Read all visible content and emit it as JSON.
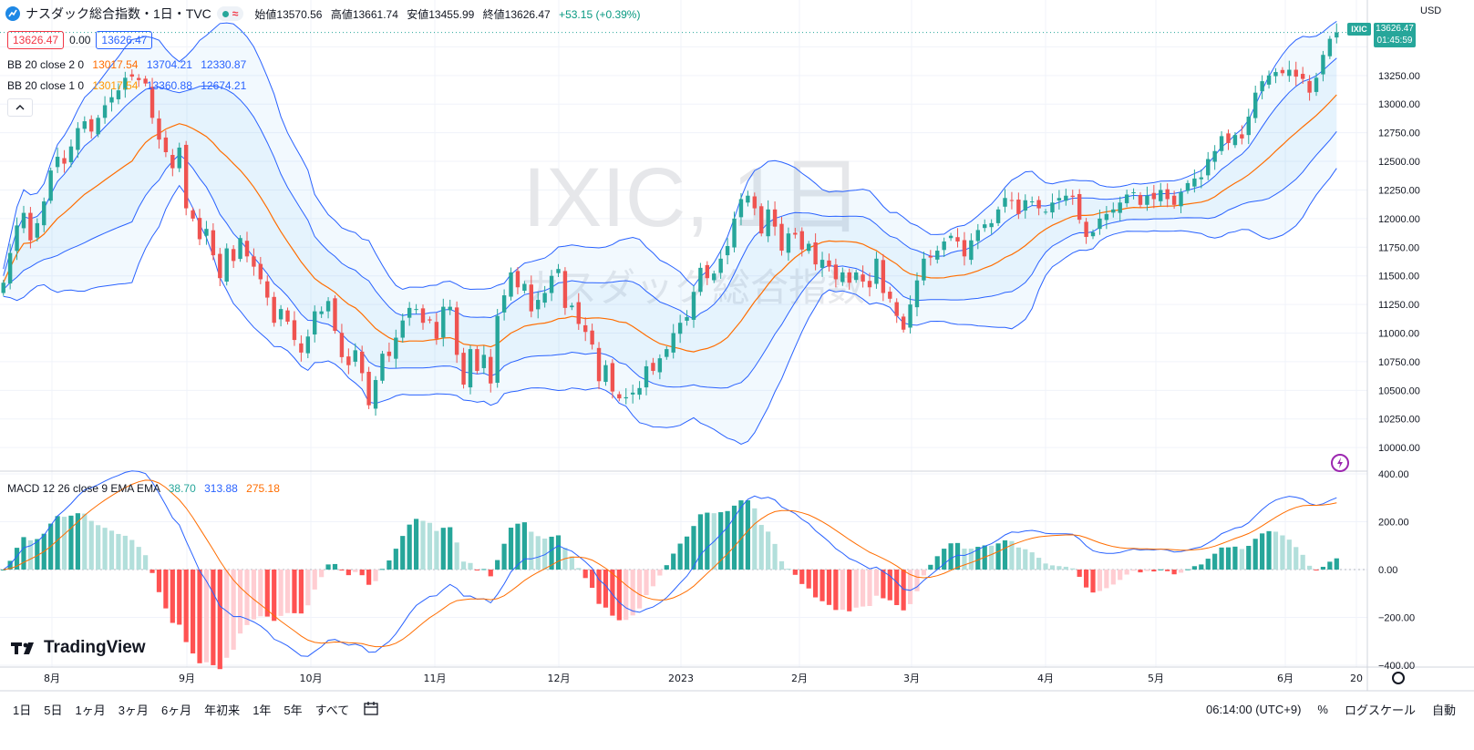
{
  "header": {
    "symbol_title": "ナスダック総合指数・1日・TVC",
    "approx_icon": "≈",
    "ohlc": {
      "open_label": "始値",
      "open": "13570.56",
      "high_label": "高値",
      "high": "13661.74",
      "low_label": "安値",
      "low": "13455.99",
      "close_label": "終値",
      "close": "13626.47",
      "change": "+53.15 (+0.39%)"
    }
  },
  "quote_boxes": {
    "bid": "13626.47",
    "spread": "0.00",
    "ask": "13626.47"
  },
  "indicators": {
    "bb2": {
      "label": "BB 20 close 2 0",
      "basis": "13017.54",
      "upper": "13704.21",
      "lower": "12330.87"
    },
    "bb1": {
      "label": "BB 20 close 1 0",
      "basis": "13017.54",
      "upper": "13360.88",
      "lower": "12674.21"
    },
    "macd": {
      "label": "MACD 12 26 close 9 EMA EMA",
      "hist": "38.70",
      "macd": "313.88",
      "signal": "275.18"
    }
  },
  "watermark": {
    "line1": "IXIC, 1日",
    "line2": "ナスダック総合指数"
  },
  "axis": {
    "currency": "USD",
    "price_ticks": [
      "13250.00",
      "13000.00",
      "12750.00",
      "12500.00",
      "12250.00",
      "12000.00",
      "11750.00",
      "11500.00",
      "11250.00",
      "11000.00",
      "10750.00",
      "10500.00",
      "10250.00",
      "10000.00"
    ],
    "macd_ticks": [
      "400.00",
      "200.00",
      "0.00",
      "−200.00",
      "−400.00"
    ],
    "time_labels": [
      "8月",
      "9月",
      "10月",
      "11月",
      "12月",
      "2023",
      "2月",
      "3月",
      "4月",
      "5月",
      "6月",
      "20"
    ]
  },
  "price_tag": {
    "symbol": "IXIC",
    "price": "13626.47",
    "countdown": "01:45:59"
  },
  "branding": {
    "name": "TradingView"
  },
  "bottom_bar": {
    "ranges": [
      "1日",
      "5日",
      "1ヶ月",
      "3ヶ月",
      "6ヶ月",
      "年初来",
      "1年",
      "5年",
      "すべて"
    ],
    "clock": "06:14:00 (UTC+9)",
    "percent": "%",
    "log_scale": "ログスケール",
    "auto": "自動"
  },
  "colors": {
    "up": "#26a69a",
    "down": "#ef5350",
    "bb_outer": "#2962ff",
    "bb_basis": "#ff6d00",
    "macd": "#2962ff",
    "signal": "#ff6d00"
  },
  "chart_data": {
    "type": "candlestick",
    "price_range": [
      9850,
      13750
    ],
    "macd_range": [
      -400,
      400
    ],
    "close": [
      11440,
      11700,
      11940,
      12050,
      11810,
      11960,
      12150,
      12420,
      12540,
      12480,
      12630,
      12790,
      12850,
      12760,
      12880,
      12990,
      13060,
      13120,
      13230,
      13240,
      13210,
      13180,
      12880,
      12690,
      12580,
      12440,
      12620,
      12090,
      12000,
      11820,
      11910,
      11680,
      11480,
      11740,
      11630,
      11830,
      11670,
      11580,
      11470,
      11310,
      11090,
      11210,
      11100,
      10940,
      10830,
      10970,
      11190,
      11190,
      11280,
      11020,
      10790,
      10720,
      10850,
      10650,
      10370,
      10590,
      10820,
      10800,
      10960,
      11110,
      11220,
      11210,
      11090,
      11110,
      10950,
      11230,
      11230,
      10810,
      10550,
      10860,
      10670,
      10810,
      10560,
      11150,
      11330,
      11530,
      11400,
      11430,
      11190,
      11290,
      11350,
      11500,
      11560,
      11220,
      11240,
      11080,
      11010,
      10900,
      10580,
      10720,
      10490,
      10430,
      10440,
      10480,
      10520,
      10710,
      10670,
      10780,
      10860,
      11000,
      11090,
      11140,
      11360,
      11570,
      11480,
      11520,
      11650,
      11760,
      12000,
      12170,
      12200,
      12090,
      11870,
      12080,
      11930,
      11720,
      11870,
      11860,
      11730,
      11780,
      11600,
      11640,
      11580,
      11470,
      11530,
      11440,
      11530,
      11450,
      11400,
      11650,
      11350,
      11300,
      11150,
      11030,
      11250,
      11460,
      11650,
      11660,
      11720,
      11800,
      11850,
      11800,
      11670,
      11810,
      11900,
      11950,
      11960,
      12080,
      12180,
      12160,
      12040,
      12160,
      12150,
      12090,
      12060,
      12140,
      12180,
      12200,
      12190,
      11990,
      11840,
      11880,
      12000,
      12040,
      12080,
      12140,
      12210,
      12230,
      12120,
      12200,
      12170,
      12250,
      12170,
      12120,
      12230,
      12310,
      12350,
      12360,
      12520,
      12590,
      12720,
      12660,
      12730,
      12700,
      12890,
      13100,
      13200,
      13250,
      13280,
      13270,
      13300,
      13240,
      13220,
      13100,
      13230,
      13430,
      13570,
      13626
    ],
    "bb_note": "BB(20,2) and BB(20,1) computed from closes"
  }
}
